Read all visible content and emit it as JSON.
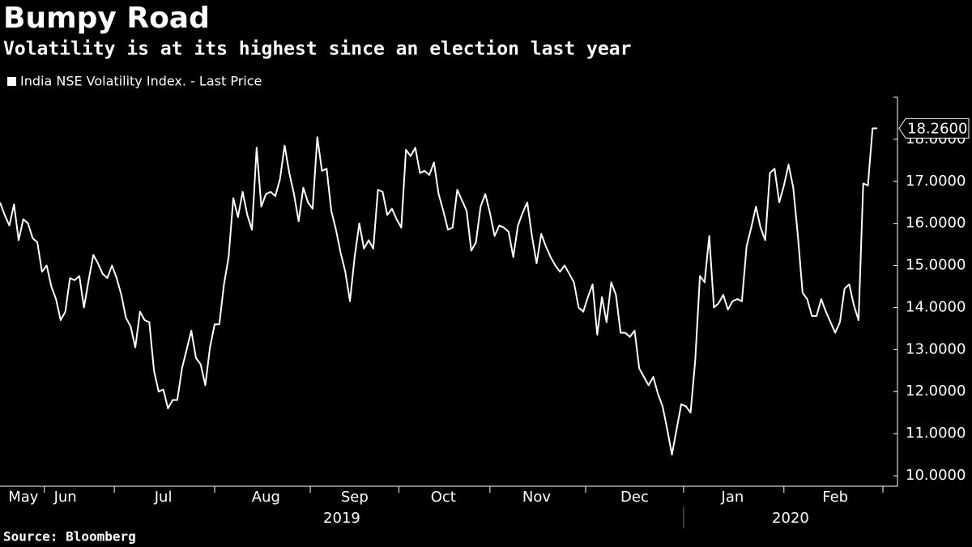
{
  "chart_data": {
    "type": "line",
    "title": "Bumpy Road",
    "subtitle": "Volatility is at its highest since an election last year",
    "source": "Source: Bloomberg",
    "categories": [
      null,
      null,
      null,
      null,
      null,
      "May",
      null,
      null,
      null,
      null,
      null,
      null,
      null,
      null,
      "Jun",
      null,
      null,
      null,
      null,
      null,
      null,
      null,
      null,
      null,
      null,
      null,
      null,
      null,
      null,
      null,
      null,
      null,
      null,
      null,
      null,
      "Jul",
      null,
      null,
      null,
      null,
      null,
      null,
      null,
      null,
      null,
      null,
      null,
      null,
      null,
      null,
      null,
      null,
      null,
      null,
      null,
      null,
      null,
      "Aug",
      null,
      null,
      null,
      null,
      null,
      null,
      null,
      null,
      null,
      null,
      null,
      null,
      null,
      null,
      null,
      null,
      null,
      null,
      "Sep",
      null,
      null,
      null,
      null,
      null,
      null,
      null,
      null,
      null,
      null,
      null,
      null,
      null,
      null,
      null,
      null,
      null,
      null,
      "Oct",
      null,
      null,
      null,
      null,
      null,
      null,
      null,
      null,
      null,
      null,
      null,
      null,
      null,
      null,
      null,
      null,
      null,
      null,
      null,
      "Nov",
      null,
      null,
      null,
      null,
      null,
      null,
      null,
      null,
      null,
      null,
      null,
      null,
      null,
      null,
      null,
      null,
      null,
      null,
      null,
      null,
      "Dec",
      null,
      null,
      null,
      null,
      null,
      null,
      null,
      null,
      null,
      null,
      null,
      null,
      null,
      null,
      null,
      null,
      null,
      null,
      null,
      null,
      "Jan",
      null,
      null,
      null,
      null,
      null,
      null,
      null,
      null,
      null,
      null,
      null,
      null,
      null,
      null,
      null,
      null,
      null,
      null,
      null,
      null,
      null,
      "Feb",
      null,
      null,
      null,
      null,
      null,
      null,
      null,
      null,
      null
    ],
    "years": [
      "2019",
      "2020"
    ],
    "series": [
      {
        "name": "India NSE Volatility Index. - Last Price",
        "color": "#ffffff",
        "values": [
          16.5,
          16.2,
          15.95,
          16.45,
          15.6,
          16.1,
          16.0,
          15.65,
          15.55,
          14.85,
          15.0,
          14.5,
          14.2,
          13.7,
          13.9,
          14.7,
          14.65,
          14.75,
          14.0,
          14.65,
          15.25,
          15.05,
          14.8,
          14.7,
          15.0,
          14.7,
          14.3,
          13.75,
          13.55,
          13.05,
          13.9,
          13.7,
          13.65,
          12.5,
          12.0,
          12.05,
          11.6,
          11.8,
          11.8,
          12.55,
          13.0,
          13.45,
          12.8,
          12.65,
          12.15,
          13.05,
          13.6,
          13.6,
          14.55,
          15.2,
          16.6,
          16.15,
          16.75,
          16.2,
          15.85,
          17.8,
          16.4,
          16.7,
          16.75,
          16.65,
          17.05,
          17.85,
          17.2,
          16.7,
          16.05,
          16.85,
          16.5,
          16.35,
          18.05,
          17.25,
          17.3,
          16.3,
          15.85,
          15.3,
          14.85,
          14.15,
          15.2,
          16.0,
          15.4,
          15.6,
          15.4,
          16.8,
          16.75,
          16.2,
          16.35,
          16.1,
          15.9,
          17.75,
          17.6,
          17.8,
          17.2,
          17.25,
          17.15,
          17.45,
          16.7,
          16.3,
          15.85,
          15.9,
          16.8,
          16.55,
          16.3,
          15.35,
          15.55,
          16.4,
          16.7,
          16.25,
          15.7,
          15.95,
          15.9,
          15.8,
          15.2,
          15.95,
          16.25,
          16.5,
          15.7,
          15.05,
          15.75,
          15.45,
          15.2,
          15.0,
          14.85,
          15.0,
          14.8,
          14.6,
          14.0,
          13.9,
          14.25,
          14.55,
          13.35,
          14.25,
          13.65,
          14.6,
          14.3,
          13.4,
          13.4,
          13.3,
          13.45,
          12.55,
          12.35,
          12.15,
          12.35,
          11.95,
          11.65,
          11.1,
          10.5,
          11.1,
          11.7,
          11.65,
          11.5,
          12.75,
          14.75,
          14.6,
          15.7,
          14.0,
          14.1,
          14.3,
          13.95,
          14.15,
          14.2,
          14.15,
          15.45,
          15.9,
          16.4,
          15.9,
          15.6,
          17.2,
          17.3,
          16.5,
          16.9,
          17.4,
          16.85,
          15.7,
          14.35,
          14.2,
          13.8,
          13.8,
          14.2,
          13.9,
          13.65,
          13.4,
          13.65,
          14.45,
          14.55,
          14.05,
          13.7,
          16.95,
          16.9,
          18.26,
          18.26
        ],
        "value_labels": [
          null,
          null,
          null,
          null,
          null,
          null,
          null,
          null,
          null,
          null,
          null,
          null,
          null,
          null,
          null,
          null,
          null,
          null,
          null,
          null,
          null,
          null,
          null,
          null,
          null,
          null,
          null,
          null,
          null,
          null,
          null,
          null,
          null,
          null,
          null,
          null,
          null,
          null,
          null,
          null,
          null,
          null,
          null,
          null,
          null,
          null,
          null,
          null,
          null,
          null,
          null,
          null,
          null,
          null,
          null,
          null,
          null,
          null,
          null,
          null,
          null,
          null,
          null,
          null,
          null,
          null,
          null,
          null,
          null,
          null,
          null,
          null,
          null,
          null,
          null,
          null,
          null,
          null,
          null,
          null,
          null,
          null,
          null,
          null,
          null,
          null,
          null,
          null,
          null,
          null,
          null,
          null,
          null,
          null,
          null,
          null,
          null,
          null,
          null,
          null,
          null,
          null,
          null,
          null,
          null,
          null,
          null,
          null,
          null,
          null,
          null,
          null,
          null,
          null,
          null,
          null,
          null,
          null,
          null,
          null,
          null,
          null,
          null,
          null,
          null,
          null,
          null,
          null,
          null,
          null,
          null,
          null,
          null,
          null,
          null,
          null,
          null,
          null,
          null,
          null,
          null,
          null,
          null,
          null,
          null,
          null,
          null,
          null,
          null,
          null,
          null,
          null,
          null,
          null,
          null,
          null,
          null,
          null,
          null,
          null,
          null,
          null,
          null,
          null,
          null,
          null,
          null,
          null,
          null,
          null,
          null,
          null,
          null,
          null,
          null,
          null,
          null,
          null,
          null,
          null,
          null,
          null,
          null,
          null,
          null,
          null,
          null,
          null,
          "18.2600"
        ]
      }
    ],
    "ylim": [
      9.75,
      19.0
    ],
    "yticks": [
      {
        "value": 10,
        "label": "10.0000"
      },
      {
        "value": 11,
        "label": "11.0000"
      },
      {
        "value": 12,
        "label": "12.0000"
      },
      {
        "value": 13,
        "label": "13.0000"
      },
      {
        "value": 14,
        "label": "14.0000"
      },
      {
        "value": 15,
        "label": "15.0000"
      },
      {
        "value": 16,
        "label": "16.0000"
      },
      {
        "value": 17,
        "label": "17.0000"
      },
      {
        "value": 18,
        "label": "18.0000"
      }
    ],
    "y_axis_side": "right",
    "grid": false
  }
}
